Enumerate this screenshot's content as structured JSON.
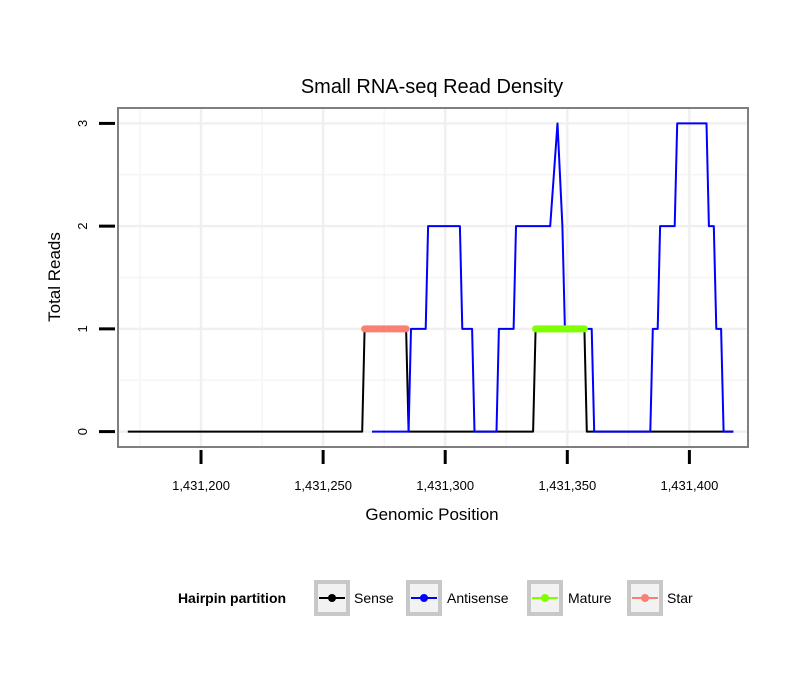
{
  "chart_data": {
    "type": "line",
    "title": "Small RNA-seq Read Density",
    "xlabel": "Genomic Position",
    "ylabel": "Total Reads",
    "xlim": [
      1431166,
      1431424
    ],
    "ylim": [
      -0.15,
      3.15
    ],
    "x_ticks": [
      {
        "value": 1431200,
        "label": "1,431,200"
      },
      {
        "value": 1431250,
        "label": "1,431,250"
      },
      {
        "value": 1431300,
        "label": "1,431,300"
      },
      {
        "value": 1431350,
        "label": "1,431,350"
      },
      {
        "value": 1431400,
        "label": "1,431,400"
      }
    ],
    "y_ticks": [
      {
        "value": 0,
        "label": "0"
      },
      {
        "value": 1,
        "label": "1"
      },
      {
        "value": 2,
        "label": "2"
      },
      {
        "value": 3,
        "label": "3"
      }
    ],
    "grid": true,
    "series": [
      {
        "name": "Sense",
        "color": "#000000",
        "points": [
          [
            1431170,
            0
          ],
          [
            1431266,
            0
          ],
          [
            1431267,
            1
          ],
          [
            1431284,
            1
          ],
          [
            1431285,
            0
          ],
          [
            1431336,
            0
          ],
          [
            1431337,
            1
          ],
          [
            1431357,
            1
          ],
          [
            1431358,
            0
          ],
          [
            1431418,
            0
          ]
        ]
      },
      {
        "name": "Antisense",
        "color": "#0000ff",
        "points": [
          [
            1431270,
            0
          ],
          [
            1431285,
            0
          ],
          [
            1431286,
            1
          ],
          [
            1431292,
            1
          ],
          [
            1431293,
            2
          ],
          [
            1431306,
            2
          ],
          [
            1431307,
            1
          ],
          [
            1431311,
            1
          ],
          [
            1431312,
            0
          ],
          [
            1431321,
            0
          ],
          [
            1431322,
            1
          ],
          [
            1431328,
            1
          ],
          [
            1431329,
            2
          ],
          [
            1431342,
            2
          ],
          [
            1431343,
            2
          ],
          [
            1431346,
            3
          ],
          [
            1431348,
            2
          ],
          [
            1431349,
            1
          ],
          [
            1431360,
            1
          ],
          [
            1431361,
            0
          ],
          [
            1431384,
            0
          ],
          [
            1431385,
            1
          ],
          [
            1431387,
            1
          ],
          [
            1431388,
            2
          ],
          [
            1431394,
            2
          ],
          [
            1431395,
            3
          ],
          [
            1431407,
            3
          ],
          [
            1431408,
            2
          ],
          [
            1431410,
            2
          ],
          [
            1431411,
            1
          ],
          [
            1431413,
            1
          ],
          [
            1431414,
            0
          ],
          [
            1431418,
            0
          ]
        ]
      },
      {
        "name": "Mature",
        "color": "#7fff00",
        "segments": [
          {
            "start": 1431337,
            "end": 1431357,
            "y": 1
          }
        ]
      },
      {
        "name": "Star",
        "color": "#fa8072",
        "segments": [
          {
            "start": 1431267,
            "end": 1431284,
            "y": 1
          }
        ]
      }
    ],
    "legend": {
      "title": "Hairpin partition",
      "position": "bottom",
      "entries": [
        {
          "label": "Sense",
          "color": "#000000"
        },
        {
          "label": "Antisense",
          "color": "#0000ff"
        },
        {
          "label": "Mature",
          "color": "#7fff00"
        },
        {
          "label": "Star",
          "color": "#fa8072"
        }
      ]
    }
  }
}
